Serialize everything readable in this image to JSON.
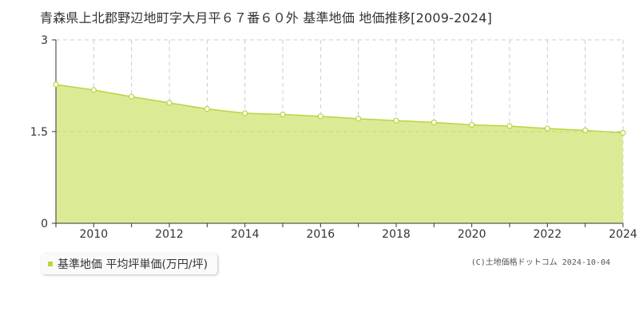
{
  "page": {
    "title": "青森県上北郡野辺地町字大月平６７番６０外 基準地価 地価推移[2009-2024]",
    "credit": "(C)土地価格ドットコム 2024-10-04"
  },
  "colors": {
    "fill": "#dbeb95",
    "line": "#b6d640",
    "point_fill": "#ffffff",
    "grid": "#cccccc",
    "axis": "#333333",
    "legend_marker": "#b6d640"
  },
  "chart_data": {
    "type": "area",
    "title": "青森県上北郡野辺地町字大月平６７番６０外 基準地価 地価推移[2009-2024]",
    "xlabel": "",
    "ylabel": "",
    "x": [
      2009,
      2010,
      2011,
      2012,
      2013,
      2014,
      2015,
      2016,
      2017,
      2018,
      2019,
      2020,
      2021,
      2022,
      2023,
      2024
    ],
    "xlim": [
      2009,
      2024
    ],
    "ylim": [
      0,
      3
    ],
    "x_tick_values": [
      2010,
      2012,
      2014,
      2016,
      2018,
      2020,
      2022,
      2024
    ],
    "x_tick_labels": [
      "2010",
      "2012",
      "2014",
      "2016",
      "2018",
      "2020",
      "2022",
      "2024"
    ],
    "y_tick_values": [
      0,
      1.5,
      3
    ],
    "y_tick_labels": [
      "0",
      "1.5",
      "3"
    ],
    "grid": true,
    "legend_position": "bottom-left",
    "series": [
      {
        "name": "基準地価 平均坪単価(万円/坪)",
        "values": [
          2.27,
          2.18,
          2.07,
          1.97,
          1.87,
          1.8,
          1.78,
          1.75,
          1.71,
          1.68,
          1.65,
          1.61,
          1.59,
          1.55,
          1.52,
          1.48
        ]
      }
    ]
  }
}
